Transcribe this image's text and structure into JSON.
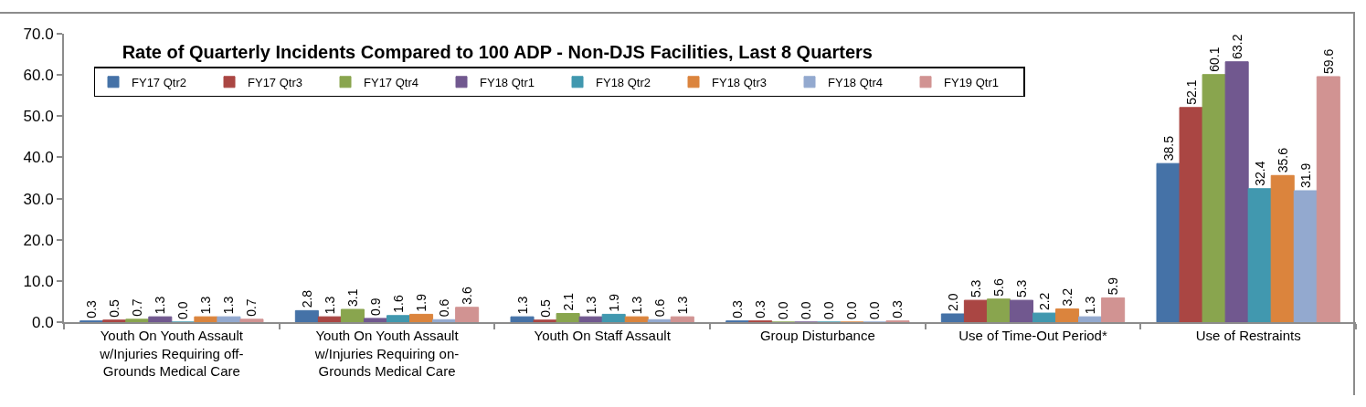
{
  "chart_data": {
    "type": "bar",
    "title": "Rate of Quarterly Incidents Compared to 100 ADP - Non-DJS Facilities, Last 8 Quarters",
    "categories": [
      "Youth On Youth Assault w/Injuries Requiring off-Grounds Medical Care",
      "Youth On Youth Assault w/Injuries Requiring on-Grounds Medical Care",
      "Youth On Staff Assault",
      "Group Disturbance",
      "Use of Time-Out Period*",
      "Use of Restraints"
    ],
    "series": [
      {
        "name": "FY17 Qtr2",
        "color": "#4572a7",
        "values": [
          0.3,
          2.8,
          1.3,
          0.3,
          2.0,
          38.5
        ],
        "value_labels": [
          "0.3",
          "2.8",
          "1.3",
          "0.3",
          "2.0",
          "38.5"
        ]
      },
      {
        "name": "FY17 Qtr3",
        "color": "#aa4643",
        "values": [
          0.5,
          1.3,
          0.5,
          0.3,
          5.3,
          52.1
        ],
        "value_labels": [
          "0.5",
          "1.3",
          "0.5",
          "0.3",
          "5.3",
          "52.1"
        ]
      },
      {
        "name": "FY17 Qtr4",
        "color": "#89a54e",
        "values": [
          0.7,
          3.1,
          2.1,
          0.0,
          5.6,
          60.1
        ],
        "value_labels": [
          "0.7",
          "3.1",
          "2.1",
          "0.0",
          "5.6",
          "60.1"
        ]
      },
      {
        "name": "FY18 Qtr1",
        "color": "#71588f",
        "values": [
          1.3,
          0.9,
          1.3,
          0.0,
          5.3,
          63.2
        ],
        "value_labels": [
          "1.3",
          "0.9",
          "1.3",
          "0.0",
          "5.3",
          "63.2"
        ]
      },
      {
        "name": "FY18 Qtr2",
        "color": "#4198af",
        "values": [
          0.0,
          1.6,
          1.9,
          0.0,
          2.2,
          32.4
        ],
        "value_labels": [
          "0.0",
          "1.6",
          "1.9",
          "0.0",
          "2.2",
          "32.4"
        ]
      },
      {
        "name": "FY18 Qtr3",
        "color": "#db843d",
        "values": [
          1.3,
          1.9,
          1.3,
          0.0,
          3.2,
          35.6
        ],
        "value_labels": [
          "1.3",
          "1.9",
          "1.3",
          "0.0",
          "3.2",
          "35.6"
        ]
      },
      {
        "name": "FY18 Qtr4",
        "color": "#93a9cf",
        "values": [
          1.3,
          0.6,
          0.6,
          0.0,
          1.3,
          31.9
        ],
        "value_labels": [
          "1.3",
          "0.6",
          "0.6",
          "0.0",
          "1.3",
          "31.9"
        ]
      },
      {
        "name": "FY19 Qtr1",
        "color": "#d19392",
        "values": [
          0.7,
          3.6,
          1.3,
          0.3,
          5.9,
          59.6
        ],
        "value_labels": [
          "0.7",
          "3.6",
          "1.3",
          "0.3",
          "5.9",
          "59.6"
        ]
      }
    ],
    "ylim": [
      0,
      70
    ],
    "yticks": [
      {
        "value": 0,
        "label": "0.0"
      },
      {
        "value": 10,
        "label": "10.0"
      },
      {
        "value": 20,
        "label": "20.0"
      },
      {
        "value": 30,
        "label": "30.0"
      },
      {
        "value": 40,
        "label": "40.0"
      },
      {
        "value": 50,
        "label": "50.0"
      },
      {
        "value": 60,
        "label": "60.0"
      },
      {
        "value": 70,
        "label": "70.0"
      }
    ],
    "legend": "top left",
    "grid": false
  }
}
